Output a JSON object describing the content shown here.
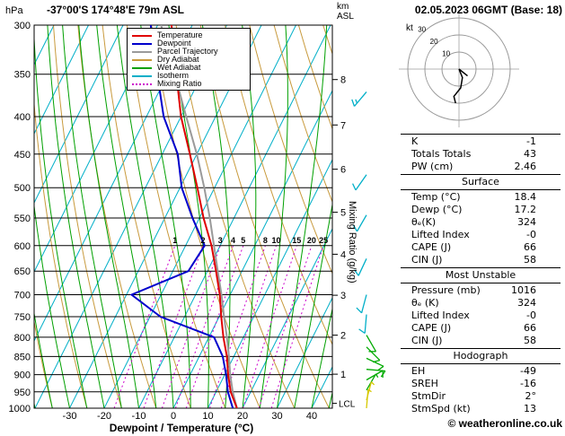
{
  "header": {
    "pressure_unit": "hPa",
    "station": "-37°00'S 174°48'E 79m ASL",
    "km_label": "km",
    "asl_label": "ASL",
    "datetime": "02.05.2023 06GMT (Base: 18)"
  },
  "legend": {
    "items": [
      {
        "label": "Temperature",
        "color": "#e00000",
        "style": "solid"
      },
      {
        "label": "Dewpoint",
        "color": "#0000cc",
        "style": "solid"
      },
      {
        "label": "Parcel Trajectory",
        "color": "#9a9a9a",
        "style": "solid"
      },
      {
        "label": "Dry Adiabat",
        "color": "#c89a3c",
        "style": "solid"
      },
      {
        "label": "Wet Adiabat",
        "color": "#00a000",
        "style": "solid"
      },
      {
        "label": "Isotherm",
        "color": "#00afc8",
        "style": "solid"
      },
      {
        "label": "Mixing Ratio",
        "color": "#cc00cc",
        "style": "dotted"
      }
    ]
  },
  "axes": {
    "x_label": "Dewpoint / Temperature (°C)",
    "x_ticks": [
      -30,
      -20,
      -10,
      0,
      10,
      20,
      30,
      40
    ],
    "pressure_ticks": [
      300,
      350,
      400,
      450,
      500,
      550,
      600,
      650,
      700,
      750,
      800,
      850,
      900,
      950,
      1000
    ],
    "km_ticks": [
      1,
      2,
      3,
      4,
      5,
      6,
      7,
      8
    ],
    "lcl_label": "LCL",
    "mixing_ratio_label": "Mixing Ratio (g/kg)",
    "mixing_ratio_values": [
      1,
      2,
      3,
      4,
      5,
      8,
      10,
      15,
      20,
      25
    ]
  },
  "chart_data": {
    "type": "line",
    "diagram": "skew-t log-p sounding",
    "xlabel": "Dewpoint / Temperature (°C)",
    "ylabel": "hPa",
    "pressure_hpa": [
      1000,
      950,
      900,
      850,
      800,
      750,
      700,
      650,
      600,
      550,
      500,
      450,
      400,
      350,
      300
    ],
    "series": [
      {
        "name": "Temperature",
        "color": "#e00000",
        "values_c": [
          18.4,
          14.2,
          11.0,
          8.0,
          4.2,
          0.6,
          -3.0,
          -7.5,
          -12.5,
          -18.8,
          -25.0,
          -32.0,
          -40.0,
          -47.5,
          -56.0
        ]
      },
      {
        "name": "Dewpoint",
        "color": "#0000cc",
        "values_c": [
          17.2,
          13.4,
          10.4,
          6.8,
          1.5,
          -17.0,
          -28.5,
          -15.5,
          -14.5,
          -22.0,
          -29.5,
          -35.5,
          -45.0,
          -53.0,
          -62.0
        ]
      },
      {
        "name": "Parcel Trajectory",
        "color": "#9a9a9a",
        "values_c": [
          18.4,
          14.8,
          11.6,
          8.6,
          5.2,
          1.4,
          -2.5,
          -7.0,
          -11.8,
          -17.0,
          -23.0,
          -30.0,
          -38.5,
          -48.0,
          -59.0
        ]
      }
    ],
    "wind_barbs": [
      {
        "pressure": 370,
        "dir": 220,
        "speed": 15,
        "color": "#00afc8"
      },
      {
        "pressure": 480,
        "dir": 215,
        "speed": 10,
        "color": "#00afc8"
      },
      {
        "pressure": 545,
        "dir": 210,
        "speed": 10,
        "color": "#00afc8"
      },
      {
        "pressure": 625,
        "dir": 205,
        "speed": 10,
        "color": "#00afc8"
      },
      {
        "pressure": 700,
        "dir": 195,
        "speed": 10,
        "color": "#00afc8"
      },
      {
        "pressure": 745,
        "dir": 185,
        "speed": 10,
        "color": "#00afc8"
      },
      {
        "pressure": 795,
        "dir": 150,
        "speed": 10,
        "color": "#00aa00"
      },
      {
        "pressure": 825,
        "dir": 135,
        "speed": 10,
        "color": "#00aa00"
      },
      {
        "pressure": 855,
        "dir": 115,
        "speed": 10,
        "color": "#00aa00"
      },
      {
        "pressure": 885,
        "dir": 95,
        "speed": 10,
        "color": "#00aa00"
      },
      {
        "pressure": 915,
        "dir": 60,
        "speed": 10,
        "color": "#00aa00"
      },
      {
        "pressure": 945,
        "dir": 30,
        "speed": 5,
        "color": "#00aa00"
      },
      {
        "pressure": 975,
        "dir": 15,
        "speed": 5,
        "color": "#d6c800"
      },
      {
        "pressure": 1000,
        "dir": 5,
        "speed": 5,
        "color": "#d6c800"
      }
    ],
    "lcl_pressure": 985
  },
  "hodograph": {
    "unit": "kt",
    "rings_kt": [
      10,
      20,
      30
    ],
    "trace_uv_kt": [
      [
        0,
        0
      ],
      [
        2,
        5
      ],
      [
        1,
        11
      ],
      [
        -3,
        16
      ],
      [
        -2,
        20
      ]
    ],
    "stub_uv_kt": [
      [
        0,
        0
      ],
      [
        5,
        4
      ]
    ]
  },
  "panel": {
    "summary_rows": [
      {
        "label": "K",
        "value": "-1"
      },
      {
        "label": "Totals Totals",
        "value": "43"
      },
      {
        "label": "PW (cm)",
        "value": "2.46"
      }
    ],
    "sections": [
      {
        "title": "Surface",
        "rows": [
          {
            "label": "Temp (°C)",
            "value": "18.4"
          },
          {
            "label": "Dewp (°C)",
            "value": "17.2"
          },
          {
            "label": "θₑ(K)",
            "value": "324"
          },
          {
            "label": "Lifted Index",
            "value": "-0"
          },
          {
            "label": "CAPE (J)",
            "value": "66"
          },
          {
            "label": "CIN (J)",
            "value": "58"
          }
        ]
      },
      {
        "title": "Most Unstable",
        "rows": [
          {
            "label": "Pressure (mb)",
            "value": "1016"
          },
          {
            "label": "θₑ (K)",
            "value": "324"
          },
          {
            "label": "Lifted Index",
            "value": "-0"
          },
          {
            "label": "CAPE (J)",
            "value": "66"
          },
          {
            "label": "CIN (J)",
            "value": "58"
          }
        ]
      },
      {
        "title": "Hodograph",
        "rows": [
          {
            "label": "EH",
            "value": "-49"
          },
          {
            "label": "SREH",
            "value": "-16"
          },
          {
            "label": "StmDir",
            "value": "2°"
          },
          {
            "label": "StmSpd (kt)",
            "value": "13"
          }
        ]
      }
    ]
  },
  "footer": {
    "copyright": "© weatheronline.co.uk"
  }
}
